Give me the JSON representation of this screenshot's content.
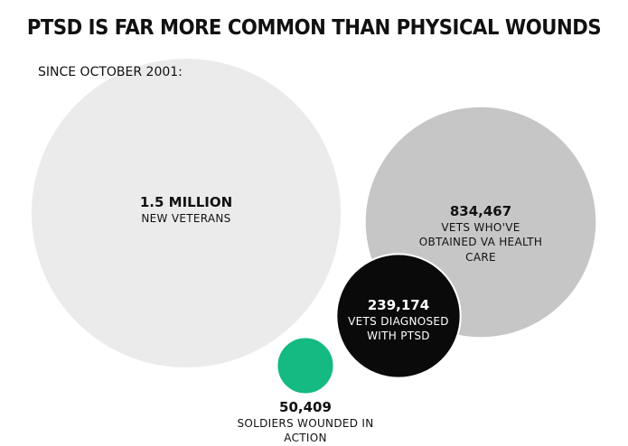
{
  "chart_data": {
    "type": "bubble",
    "title": "PTSD IS FAR MORE COMMON THAN PHYSICAL WOUNDS",
    "subtitle": "SINCE OCTOBER 2001:",
    "categories": [
      "NEW VETERANS",
      "VETS WHO'VE OBTAINED VA HEALTH CARE",
      "VETS DIAGNOSED WITH PTSD",
      "SOLDIERS WOUNDED IN ACTION"
    ],
    "values": [
      1500000,
      834467,
      239174,
      50409
    ],
    "value_labels": [
      "1.5 MILLION",
      "834,467",
      "239,174",
      "50,409"
    ],
    "colors": [
      "#ebebeb",
      "#c6c6c6",
      "#0a0a0a",
      "#15b982"
    ]
  }
}
